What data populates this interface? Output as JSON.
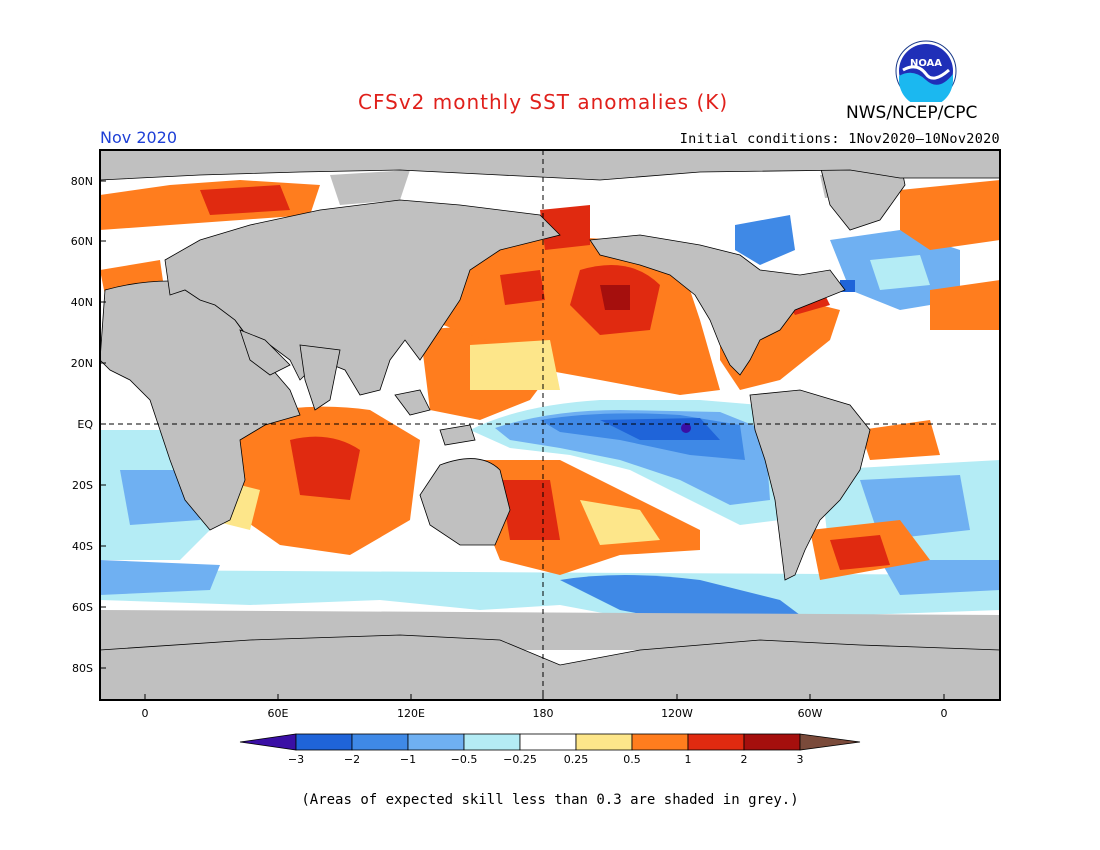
{
  "header": {
    "title": "CFSv2 monthly SST anomalies (K)",
    "org": "NWS/NCEP/CPC",
    "month": "Nov 2020",
    "initial_conditions": "Initial conditions: 1Nov2020—10Nov2020",
    "logo_text": "NOAA"
  },
  "map": {
    "lat_labels": [
      "80N",
      "60N",
      "40N",
      "20N",
      "EQ",
      "20S",
      "40S",
      "60S",
      "80S"
    ],
    "lon_labels": [
      "0",
      "60E",
      "120E",
      "180",
      "120W",
      "60W",
      "0"
    ]
  },
  "legend": {
    "ticks": [
      "−3",
      "−2",
      "−1",
      "−0.5",
      "−0.25",
      "0.25",
      "0.5",
      "1",
      "2",
      "3"
    ],
    "colors": [
      "#3a0fa5",
      "#1f64d9",
      "#3f89e6",
      "#6fb0f2",
      "#b4ecf5",
      "#ffffff",
      "#fde68a",
      "#ff7d1e",
      "#e02a10",
      "#a50f0d",
      "#7a4a3a"
    ]
  },
  "footer": {
    "note": "(Areas of expected skill less than 0.3 are shaded in grey.)"
  }
}
